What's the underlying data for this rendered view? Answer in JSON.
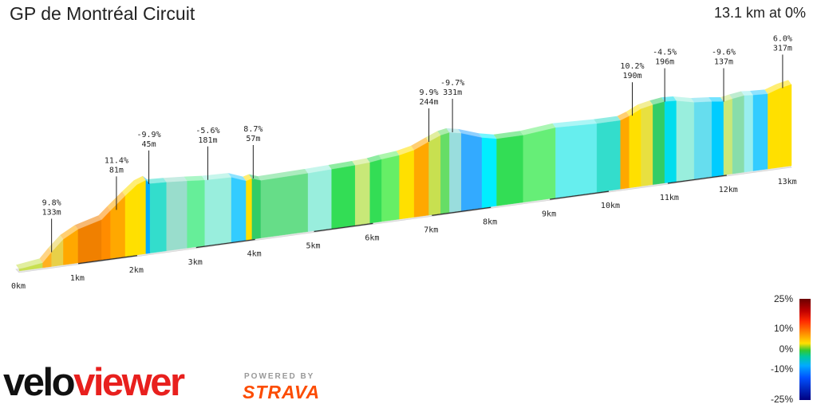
{
  "header": {
    "title": "GP de Montréal Circuit",
    "summary": "13.1 km at 0%"
  },
  "chart_data": {
    "type": "area",
    "title": "GP de Montréal Circuit",
    "summary": "13.1 km at 0%",
    "x_unit": "km",
    "xlim": [
      0,
      13.1
    ],
    "x_ticks": [
      "0km",
      "1km",
      "2km",
      "3km",
      "4km",
      "5km",
      "6km",
      "7km",
      "8km",
      "9km",
      "10km",
      "11km",
      "12km",
      "13km"
    ],
    "profile": [
      {
        "km": 0.0,
        "rel": 0.0,
        "color": "#66dd88"
      },
      {
        "km": 0.4,
        "rel": 0.04,
        "color": "#c8e050"
      },
      {
        "km": 0.55,
        "rel": 0.16,
        "color": "#ffb020"
      },
      {
        "km": 0.75,
        "rel": 0.3,
        "color": "#e8d048"
      },
      {
        "km": 1.0,
        "rel": 0.4,
        "color": "#ffa800"
      },
      {
        "km": 1.4,
        "rel": 0.48,
        "color": "#f08000"
      },
      {
        "km": 1.55,
        "rel": 0.58,
        "color": "#ff8c00"
      },
      {
        "km": 1.8,
        "rel": 0.74,
        "color": "#ffa800"
      },
      {
        "km": 2.0,
        "rel": 0.86,
        "color": "#ffe000"
      },
      {
        "km": 2.15,
        "rel": 0.9,
        "color": "#ffe000"
      },
      {
        "km": 2.22,
        "rel": 0.85,
        "color": "#00aaff"
      },
      {
        "km": 2.5,
        "rel": 0.84,
        "color": "#33ddcc"
      },
      {
        "km": 2.85,
        "rel": 0.82,
        "color": "#99ddcc"
      },
      {
        "km": 3.15,
        "rel": 0.8,
        "color": "#66ee99"
      },
      {
        "km": 3.6,
        "rel": 0.79,
        "color": "#99eedd"
      },
      {
        "km": 3.85,
        "rel": 0.72,
        "color": "#33ccff"
      },
      {
        "km": 3.95,
        "rel": 0.74,
        "color": "#ffe000"
      },
      {
        "km": 4.1,
        "rel": 0.7,
        "color": "#33cc66"
      },
      {
        "km": 4.9,
        "rel": 0.71,
        "color": "#66dd88"
      },
      {
        "km": 5.3,
        "rel": 0.72,
        "color": "#99eedd"
      },
      {
        "km": 5.7,
        "rel": 0.73,
        "color": "#33dd55"
      },
      {
        "km": 5.95,
        "rel": 0.74,
        "color": "#c8e878"
      },
      {
        "km": 6.15,
        "rel": 0.76,
        "color": "#33dd55"
      },
      {
        "km": 6.45,
        "rel": 0.78,
        "color": "#66ee66"
      },
      {
        "km": 6.7,
        "rel": 0.82,
        "color": "#ffe000"
      },
      {
        "km": 6.95,
        "rel": 0.9,
        "color": "#ffa800"
      },
      {
        "km": 7.15,
        "rel": 0.96,
        "color": "#c8e050"
      },
      {
        "km": 7.3,
        "rel": 0.98,
        "color": "#66dd66"
      },
      {
        "km": 7.5,
        "rel": 0.95,
        "color": "#99dddd"
      },
      {
        "km": 7.85,
        "rel": 0.86,
        "color": "#33aaff"
      },
      {
        "km": 8.1,
        "rel": 0.82,
        "color": "#00eeff"
      },
      {
        "km": 8.55,
        "rel": 0.82,
        "color": "#33dd55"
      },
      {
        "km": 9.1,
        "rel": 0.86,
        "color": "#66ee77"
      },
      {
        "km": 9.8,
        "rel": 0.84,
        "color": "#66eeee"
      },
      {
        "km": 10.2,
        "rel": 0.84,
        "color": "#33ddcc"
      },
      {
        "km": 10.35,
        "rel": 0.88,
        "color": "#ffa800"
      },
      {
        "km": 10.55,
        "rel": 0.95,
        "color": "#ffe000"
      },
      {
        "km": 10.75,
        "rel": 0.98,
        "color": "#e8e040"
      },
      {
        "km": 10.95,
        "rel": 1.0,
        "color": "#33cc66"
      },
      {
        "km": 11.15,
        "rel": 0.99,
        "color": "#00ddee"
      },
      {
        "km": 11.45,
        "rel": 0.94,
        "color": "#99eedd"
      },
      {
        "km": 11.75,
        "rel": 0.92,
        "color": "#66ddee"
      },
      {
        "km": 11.95,
        "rel": 0.9,
        "color": "#00ccff"
      },
      {
        "km": 12.1,
        "rel": 0.92,
        "color": "#c8e878"
      },
      {
        "km": 12.3,
        "rel": 0.94,
        "color": "#88ddaa"
      },
      {
        "km": 12.45,
        "rel": 0.93,
        "color": "#99eeee"
      },
      {
        "km": 12.7,
        "rel": 0.92,
        "color": "#33ccff"
      },
      {
        "km": 12.9,
        "rel": 0.97,
        "color": "#ffe000"
      },
      {
        "km": 13.1,
        "rel": 1.0,
        "color": "#ffe000"
      }
    ],
    "annotations": [
      {
        "km": 0.55,
        "grade": "9.8%",
        "distance": "133m"
      },
      {
        "km": 1.65,
        "grade": "11.4%",
        "distance": "81m"
      },
      {
        "km": 2.2,
        "grade": "-9.9%",
        "distance": "45m"
      },
      {
        "km": 3.2,
        "grade": "-5.6%",
        "distance": "181m"
      },
      {
        "km": 3.97,
        "grade": "8.7%",
        "distance": "57m"
      },
      {
        "km": 6.95,
        "grade": "9.9%",
        "distance": "244m"
      },
      {
        "km": 7.35,
        "grade": "-9.7%",
        "distance": "331m"
      },
      {
        "km": 10.4,
        "grade": "10.2%",
        "distance": "190m"
      },
      {
        "km": 10.95,
        "grade": "-4.5%",
        "distance": "196m"
      },
      {
        "km": 11.95,
        "grade": "-9.6%",
        "distance": "137m"
      },
      {
        "km": 12.95,
        "grade": "6.0%",
        "distance": "317m"
      }
    ],
    "legend": {
      "labels": [
        "25%",
        "10%",
        "0%",
        "-10%",
        "-25%"
      ],
      "values": [
        25,
        10,
        0,
        -10,
        -25
      ]
    }
  },
  "branding": {
    "logo_left": "velo",
    "logo_right": "viewer",
    "powered_by": "POWERED BY",
    "strava": "STRAVA"
  }
}
